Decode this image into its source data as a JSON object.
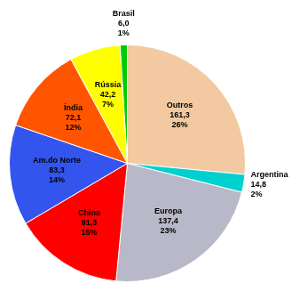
{
  "chart_data": {
    "type": "pie",
    "categories": [
      "Outros",
      "Argentina",
      "Europa",
      "China",
      "Am.do Norte",
      "Índia",
      "Rússia",
      "Brasil"
    ],
    "values": [
      161.3,
      14.8,
      137.4,
      91.3,
      83.3,
      72.1,
      42.2,
      6.0
    ],
    "value_labels": [
      "161,3",
      "14,8",
      "137,4",
      "91,3",
      "83,3",
      "72,1",
      "42,2",
      "6,0"
    ],
    "percents": [
      26,
      2,
      23,
      15,
      14,
      12,
      7,
      1
    ],
    "percent_labels": [
      "26%",
      "2%",
      "23%",
      "15%",
      "14%",
      "12%",
      "7%",
      "1%"
    ],
    "colors": [
      "#F2C9A0",
      "#00D0D0",
      "#B8B8C8",
      "#FF0000",
      "#3355EE",
      "#FF5500",
      "#FFFF00",
      "#00CC00"
    ],
    "data_labels": true,
    "legend": false
  }
}
